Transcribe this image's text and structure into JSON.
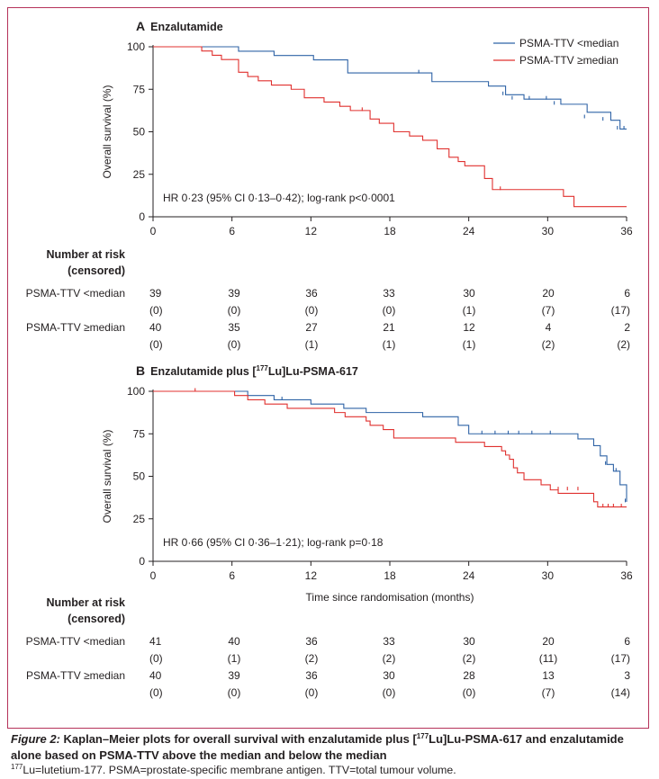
{
  "colors": {
    "frame": "#b5325a",
    "low": "#2f63a6",
    "high": "#e0312f",
    "text": "#231f20"
  },
  "risk_header": {
    "line1": "Number at risk",
    "line2": "(censored)"
  },
  "caption": {
    "lead": "Figure 2:",
    "main_before": " Kaplan–Meier plots for overall survival with enzalutamide plus [",
    "main_sup": "177",
    "main_after": "Lu]Lu-PSMA-617 and enzalutamide alone based on PSMA-TTV above the median and below the median",
    "note_sup": "177",
    "note_text": "Lu=lutetium-177. PSMA=prostate-specific membrane antigen. TTV=total tumour volume."
  },
  "chart_data": [
    {
      "type": "line",
      "step": true,
      "panel_letter": "A",
      "title": "Enzalutamide",
      "title_sup": "",
      "title_after": "",
      "ylabel": "Overall survival (%)",
      "xlabel": "",
      "xlim": [
        0,
        36
      ],
      "ylim": [
        0,
        100
      ],
      "xticks": [
        0,
        6,
        12,
        18,
        24,
        30,
        36
      ],
      "yticks": [
        0,
        25,
        50,
        75,
        100
      ],
      "grid": false,
      "legend": "top-right",
      "annotation": "HR 0·23 (95% CI 0·13–0·42); log-rank p<0·0001",
      "series": [
        {
          "name": "PSMA-TTV <median",
          "color_key": "low",
          "x": [
            0,
            2.6,
            6.5,
            9.2,
            12.2,
            14.8,
            21.2,
            25.5,
            26.8,
            28.2,
            31.0,
            33.0,
            34.8,
            35.5,
            36
          ],
          "y": [
            100,
            100,
            97.4,
            94.9,
            92.3,
            84.6,
            79.5,
            76.9,
            71.8,
            69.2,
            66.2,
            61.5,
            56.8,
            51.6,
            51.6
          ],
          "censor_x": [
            20.2,
            26.6,
            27.3,
            28.6,
            29.9,
            30.5,
            32.8,
            34.2,
            35.3,
            35.8
          ],
          "censor_y": [
            84.6,
            71.8,
            69.2,
            69.2,
            69.2,
            66.2,
            58.2,
            56.8,
            51.6,
            51.6
          ]
        },
        {
          "name": "PSMA-TTV ≥median",
          "color_key": "high",
          "x": [
            0,
            3.7,
            4.5,
            5.2,
            6.5,
            7.2,
            8.0,
            9.0,
            10.5,
            11.5,
            13.0,
            14.2,
            15.0,
            16.5,
            17.2,
            18.3,
            19.5,
            20.5,
            21.6,
            22.5,
            23.2,
            23.7,
            25.2,
            25.8,
            27.0,
            31.2,
            32.0,
            36
          ],
          "y": [
            100,
            97.5,
            95.0,
            92.5,
            85.0,
            82.5,
            80.0,
            77.5,
            75.0,
            70.0,
            67.5,
            65.0,
            62.5,
            57.5,
            55.0,
            50.0,
            47.5,
            45.0,
            40.0,
            35.0,
            32.5,
            30.0,
            22.5,
            16.0,
            16.0,
            12.0,
            6.0,
            6.0
          ],
          "censor_x": [
            15.9,
            26.4
          ],
          "censor_y": [
            62.5,
            16.0
          ]
        }
      ],
      "risk_table": [
        {
          "label": "PSMA-TTV <median",
          "at_risk": [
            39,
            39,
            36,
            33,
            30,
            20,
            6
          ],
          "censored": [
            "(0)",
            "(0)",
            "(0)",
            "(0)",
            "(1)",
            "(7)",
            "(17)"
          ]
        },
        {
          "label": "PSMA-TTV ≥median",
          "at_risk": [
            40,
            35,
            27,
            21,
            12,
            4,
            2
          ],
          "censored": [
            "(0)",
            "(0)",
            "(1)",
            "(1)",
            "(1)",
            "(2)",
            "(2)"
          ]
        }
      ]
    },
    {
      "type": "line",
      "step": true,
      "panel_letter": "B",
      "title": "Enzalutamide plus [",
      "title_sup": "177",
      "title_after": "Lu]Lu-PSMA-617",
      "ylabel": "Overall survival (%)",
      "xlabel": "Time since randomisation (months)",
      "xlim": [
        0,
        36
      ],
      "ylim": [
        0,
        100
      ],
      "xticks": [
        0,
        6,
        12,
        18,
        24,
        30,
        36
      ],
      "yticks": [
        0,
        25,
        50,
        75,
        100
      ],
      "grid": false,
      "legend": "",
      "annotation": "HR 0·66 (95% CI 0·36–1·21); log-rank p=0·18",
      "series": [
        {
          "name": "PSMA-TTV <median",
          "color_key": "low",
          "x": [
            0,
            5.2,
            7.2,
            9.2,
            12.0,
            14.5,
            16.2,
            20.5,
            23.2,
            24.0,
            31.2,
            32.3,
            33.5,
            34.0,
            34.5,
            35.0,
            35.5,
            36
          ],
          "y": [
            100,
            100,
            97.5,
            95.0,
            92.5,
            90.0,
            87.5,
            85.0,
            80.0,
            75.0,
            75.0,
            72.0,
            68.0,
            62.0,
            57.0,
            53.0,
            45.0,
            35.0
          ],
          "censor_x": [
            9.8,
            25.0,
            26.0,
            27.0,
            27.8,
            28.8,
            30.2,
            34.4,
            35.2,
            35.9
          ],
          "censor_y": [
            95.0,
            75.0,
            75.0,
            75.0,
            75.0,
            75.0,
            75.0,
            57.0,
            53.0,
            35.0
          ]
        },
        {
          "name": "PSMA-TTV ≥median",
          "color_key": "high",
          "x": [
            0,
            6.2,
            7.2,
            8.5,
            10.2,
            13.8,
            14.6,
            16.2,
            16.5,
            17.5,
            18.3,
            23.0,
            25.2,
            26.5,
            26.8,
            27.1,
            27.4,
            27.7,
            28.2,
            29.5,
            30.2,
            30.8,
            33.5,
            33.8,
            36
          ],
          "y": [
            100,
            97.5,
            95.0,
            92.5,
            90.0,
            87.5,
            85.0,
            82.5,
            80.0,
            77.5,
            72.5,
            70.0,
            67.5,
            65.0,
            62.5,
            60.0,
            55.0,
            52.0,
            48.0,
            45.0,
            42.0,
            40.0,
            35.0,
            32.0,
            32.0
          ],
          "censor_x": [
            3.2,
            30.8,
            31.5,
            32.3,
            34.2,
            34.6,
            35.0,
            35.6
          ],
          "censor_y": [
            100,
            42.0,
            42.0,
            42.0,
            32.0,
            32.0,
            32.0,
            32.0
          ]
        }
      ],
      "risk_table": [
        {
          "label": "PSMA-TTV <median",
          "at_risk": [
            41,
            40,
            36,
            33,
            30,
            20,
            6
          ],
          "censored": [
            "(0)",
            "(1)",
            "(2)",
            "(2)",
            "(2)",
            "(11)",
            "(17)"
          ]
        },
        {
          "label": "PSMA-TTV ≥median",
          "at_risk": [
            40,
            39,
            36,
            30,
            28,
            13,
            3
          ],
          "censored": [
            "(0)",
            "(0)",
            "(0)",
            "(0)",
            "(0)",
            "(7)",
            "(14)"
          ]
        }
      ]
    }
  ]
}
